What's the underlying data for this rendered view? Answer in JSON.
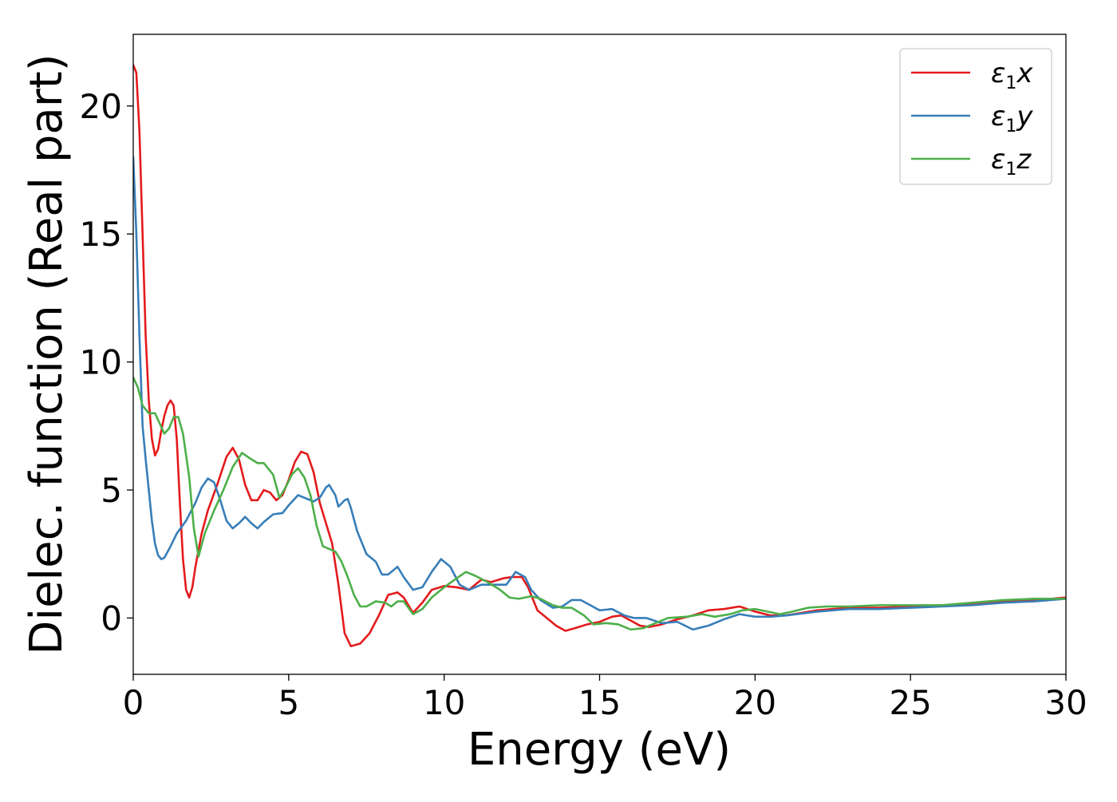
{
  "chart_data": {
    "type": "line",
    "title": "",
    "xlabel": "Energy (eV)",
    "ylabel": "Dielec. function (Real part)",
    "xlim": [
      0,
      30
    ],
    "ylim": [
      -2.2,
      22.8
    ],
    "xticks": [
      0,
      5,
      10,
      15,
      20,
      25,
      30
    ],
    "yticks": [
      0,
      5,
      10,
      15,
      20
    ],
    "grid": false,
    "legend_position": "top-right",
    "series": [
      {
        "name": "ε1x",
        "legend_main": "ε",
        "legend_sub": "1",
        "legend_suffix": "x",
        "color": "#e41a1c",
        "points": [
          [
            0.0,
            21.6
          ],
          [
            0.1,
            21.3
          ],
          [
            0.2,
            19.0
          ],
          [
            0.3,
            15.0
          ],
          [
            0.4,
            11.0
          ],
          [
            0.5,
            8.5
          ],
          [
            0.6,
            7.0
          ],
          [
            0.7,
            6.35
          ],
          [
            0.8,
            6.6
          ],
          [
            0.9,
            7.3
          ],
          [
            1.0,
            7.9
          ],
          [
            1.1,
            8.3
          ],
          [
            1.2,
            8.5
          ],
          [
            1.3,
            8.3
          ],
          [
            1.4,
            7.0
          ],
          [
            1.5,
            4.5
          ],
          [
            1.6,
            2.3
          ],
          [
            1.7,
            1.1
          ],
          [
            1.8,
            0.8
          ],
          [
            1.9,
            1.2
          ],
          [
            2.0,
            2.0
          ],
          [
            2.2,
            3.3
          ],
          [
            2.4,
            4.2
          ],
          [
            2.7,
            5.2
          ],
          [
            3.0,
            6.3
          ],
          [
            3.2,
            6.65
          ],
          [
            3.4,
            6.2
          ],
          [
            3.6,
            5.2
          ],
          [
            3.8,
            4.6
          ],
          [
            4.0,
            4.6
          ],
          [
            4.2,
            5.0
          ],
          [
            4.4,
            4.9
          ],
          [
            4.6,
            4.6
          ],
          [
            4.8,
            4.8
          ],
          [
            5.0,
            5.4
          ],
          [
            5.2,
            6.1
          ],
          [
            5.4,
            6.5
          ],
          [
            5.6,
            6.4
          ],
          [
            5.8,
            5.7
          ],
          [
            6.0,
            4.5
          ],
          [
            6.2,
            3.7
          ],
          [
            6.4,
            2.9
          ],
          [
            6.6,
            1.3
          ],
          [
            6.8,
            -0.6
          ],
          [
            7.0,
            -1.1
          ],
          [
            7.3,
            -1.0
          ],
          [
            7.6,
            -0.6
          ],
          [
            7.9,
            0.1
          ],
          [
            8.2,
            0.9
          ],
          [
            8.5,
            1.0
          ],
          [
            8.7,
            0.8
          ],
          [
            9.0,
            0.2
          ],
          [
            9.3,
            0.6
          ],
          [
            9.6,
            1.1
          ],
          [
            10.0,
            1.25
          ],
          [
            10.4,
            1.2
          ],
          [
            10.8,
            1.1
          ],
          [
            11.2,
            1.5
          ],
          [
            11.5,
            1.4
          ],
          [
            11.9,
            1.55
          ],
          [
            12.2,
            1.6
          ],
          [
            12.5,
            1.6
          ],
          [
            12.7,
            1.2
          ],
          [
            13.0,
            0.3
          ],
          [
            13.3,
            0.0
          ],
          [
            13.6,
            -0.3
          ],
          [
            13.9,
            -0.5
          ],
          [
            14.2,
            -0.4
          ],
          [
            14.6,
            -0.25
          ],
          [
            15.0,
            -0.15
          ],
          [
            15.4,
            0.05
          ],
          [
            15.7,
            0.1
          ],
          [
            16.0,
            -0.1
          ],
          [
            16.3,
            -0.3
          ],
          [
            16.6,
            -0.35
          ],
          [
            17.0,
            -0.25
          ],
          [
            17.5,
            -0.05
          ],
          [
            18.0,
            0.1
          ],
          [
            18.5,
            0.3
          ],
          [
            19.0,
            0.35
          ],
          [
            19.5,
            0.45
          ],
          [
            20.0,
            0.25
          ],
          [
            20.5,
            0.1
          ],
          [
            21.0,
            0.1
          ],
          [
            21.5,
            0.2
          ],
          [
            22.0,
            0.3
          ],
          [
            23.0,
            0.4
          ],
          [
            24.0,
            0.4
          ],
          [
            25.0,
            0.45
          ],
          [
            26.0,
            0.5
          ],
          [
            27.0,
            0.55
          ],
          [
            28.0,
            0.65
          ],
          [
            29.0,
            0.7
          ],
          [
            30.0,
            0.8
          ]
        ]
      },
      {
        "name": "ε1y",
        "legend_main": "ε",
        "legend_sub": "1",
        "legend_suffix": "y",
        "color": "#377eb8",
        "points": [
          [
            0.0,
            18.0
          ],
          [
            0.1,
            15.0
          ],
          [
            0.2,
            11.0
          ],
          [
            0.3,
            7.5
          ],
          [
            0.4,
            6.2
          ],
          [
            0.5,
            5.0
          ],
          [
            0.6,
            3.8
          ],
          [
            0.7,
            2.9
          ],
          [
            0.8,
            2.45
          ],
          [
            0.9,
            2.3
          ],
          [
            1.0,
            2.35
          ],
          [
            1.2,
            2.8
          ],
          [
            1.4,
            3.3
          ],
          [
            1.7,
            3.8
          ],
          [
            2.0,
            4.5
          ],
          [
            2.2,
            5.1
          ],
          [
            2.4,
            5.45
          ],
          [
            2.6,
            5.3
          ],
          [
            2.8,
            4.6
          ],
          [
            3.0,
            3.8
          ],
          [
            3.2,
            3.5
          ],
          [
            3.4,
            3.7
          ],
          [
            3.6,
            3.95
          ],
          [
            3.8,
            3.7
          ],
          [
            4.0,
            3.5
          ],
          [
            4.2,
            3.75
          ],
          [
            4.5,
            4.05
          ],
          [
            4.8,
            4.1
          ],
          [
            5.0,
            4.4
          ],
          [
            5.3,
            4.8
          ],
          [
            5.6,
            4.65
          ],
          [
            5.8,
            4.55
          ],
          [
            6.0,
            4.7
          ],
          [
            6.2,
            5.1
          ],
          [
            6.3,
            5.2
          ],
          [
            6.5,
            4.8
          ],
          [
            6.6,
            4.35
          ],
          [
            6.8,
            4.6
          ],
          [
            6.9,
            4.65
          ],
          [
            7.0,
            4.3
          ],
          [
            7.2,
            3.4
          ],
          [
            7.5,
            2.5
          ],
          [
            7.8,
            2.2
          ],
          [
            8.0,
            1.7
          ],
          [
            8.2,
            1.7
          ],
          [
            8.5,
            2.0
          ],
          [
            8.7,
            1.6
          ],
          [
            9.0,
            1.1
          ],
          [
            9.3,
            1.2
          ],
          [
            9.6,
            1.8
          ],
          [
            9.9,
            2.3
          ],
          [
            10.2,
            2.0
          ],
          [
            10.5,
            1.3
          ],
          [
            10.8,
            1.1
          ],
          [
            11.2,
            1.3
          ],
          [
            11.6,
            1.3
          ],
          [
            12.0,
            1.3
          ],
          [
            12.3,
            1.8
          ],
          [
            12.6,
            1.6
          ],
          [
            12.8,
            1.1
          ],
          [
            13.1,
            0.7
          ],
          [
            13.5,
            0.4
          ],
          [
            13.8,
            0.45
          ],
          [
            14.1,
            0.7
          ],
          [
            14.4,
            0.7
          ],
          [
            14.7,
            0.5
          ],
          [
            15.0,
            0.3
          ],
          [
            15.4,
            0.35
          ],
          [
            15.8,
            0.1
          ],
          [
            16.1,
            0.0
          ],
          [
            16.5,
            0.0
          ],
          [
            17.0,
            -0.2
          ],
          [
            17.5,
            -0.15
          ],
          [
            18.0,
            -0.45
          ],
          [
            18.5,
            -0.3
          ],
          [
            19.0,
            -0.05
          ],
          [
            19.5,
            0.15
          ],
          [
            20.0,
            0.05
          ],
          [
            20.5,
            0.05
          ],
          [
            21.0,
            0.1
          ],
          [
            22.0,
            0.25
          ],
          [
            23.0,
            0.35
          ],
          [
            24.0,
            0.35
          ],
          [
            25.0,
            0.4
          ],
          [
            26.0,
            0.45
          ],
          [
            27.0,
            0.5
          ],
          [
            28.0,
            0.6
          ],
          [
            29.0,
            0.65
          ],
          [
            30.0,
            0.75
          ]
        ]
      },
      {
        "name": "ε1z",
        "legend_main": "ε",
        "legend_sub": "1",
        "legend_suffix": "z",
        "color": "#4daf4a",
        "points": [
          [
            0.0,
            9.4
          ],
          [
            0.15,
            9.0
          ],
          [
            0.3,
            8.3
          ],
          [
            0.5,
            8.0
          ],
          [
            0.7,
            8.0
          ],
          [
            0.85,
            7.6
          ],
          [
            1.0,
            7.2
          ],
          [
            1.15,
            7.4
          ],
          [
            1.3,
            7.85
          ],
          [
            1.45,
            7.85
          ],
          [
            1.6,
            7.2
          ],
          [
            1.8,
            5.5
          ],
          [
            1.95,
            3.5
          ],
          [
            2.1,
            2.4
          ],
          [
            2.3,
            3.3
          ],
          [
            2.6,
            4.2
          ],
          [
            2.9,
            5.0
          ],
          [
            3.2,
            5.9
          ],
          [
            3.5,
            6.45
          ],
          [
            3.8,
            6.2
          ],
          [
            4.0,
            6.05
          ],
          [
            4.2,
            6.05
          ],
          [
            4.5,
            5.6
          ],
          [
            4.7,
            4.7
          ],
          [
            4.9,
            5.1
          ],
          [
            5.1,
            5.6
          ],
          [
            5.3,
            5.85
          ],
          [
            5.5,
            5.5
          ],
          [
            5.7,
            4.8
          ],
          [
            5.9,
            3.6
          ],
          [
            6.1,
            2.8
          ],
          [
            6.3,
            2.7
          ],
          [
            6.5,
            2.6
          ],
          [
            6.7,
            2.2
          ],
          [
            6.9,
            1.6
          ],
          [
            7.1,
            0.9
          ],
          [
            7.3,
            0.45
          ],
          [
            7.5,
            0.45
          ],
          [
            7.8,
            0.65
          ],
          [
            8.1,
            0.6
          ],
          [
            8.3,
            0.45
          ],
          [
            8.5,
            0.65
          ],
          [
            8.7,
            0.65
          ],
          [
            9.0,
            0.15
          ],
          [
            9.3,
            0.35
          ],
          [
            9.6,
            0.8
          ],
          [
            10.0,
            1.2
          ],
          [
            10.4,
            1.55
          ],
          [
            10.7,
            1.8
          ],
          [
            11.0,
            1.65
          ],
          [
            11.4,
            1.4
          ],
          [
            11.8,
            1.1
          ],
          [
            12.1,
            0.8
          ],
          [
            12.4,
            0.75
          ],
          [
            12.8,
            0.85
          ],
          [
            13.1,
            0.75
          ],
          [
            13.5,
            0.5
          ],
          [
            13.8,
            0.4
          ],
          [
            14.1,
            0.4
          ],
          [
            14.5,
            0.1
          ],
          [
            14.8,
            -0.25
          ],
          [
            15.2,
            -0.2
          ],
          [
            15.6,
            -0.25
          ],
          [
            16.0,
            -0.45
          ],
          [
            16.4,
            -0.4
          ],
          [
            16.8,
            -0.2
          ],
          [
            17.2,
            0.0
          ],
          [
            17.8,
            0.05
          ],
          [
            18.3,
            0.15
          ],
          [
            18.7,
            0.05
          ],
          [
            19.2,
            0.15
          ],
          [
            19.6,
            0.3
          ],
          [
            20.0,
            0.35
          ],
          [
            20.4,
            0.25
          ],
          [
            20.8,
            0.15
          ],
          [
            21.2,
            0.25
          ],
          [
            21.7,
            0.4
          ],
          [
            22.3,
            0.45
          ],
          [
            23.0,
            0.45
          ],
          [
            24.0,
            0.5
          ],
          [
            25.0,
            0.5
          ],
          [
            26.0,
            0.5
          ],
          [
            27.0,
            0.6
          ],
          [
            28.0,
            0.7
          ],
          [
            29.0,
            0.75
          ],
          [
            30.0,
            0.75
          ]
        ]
      }
    ]
  }
}
